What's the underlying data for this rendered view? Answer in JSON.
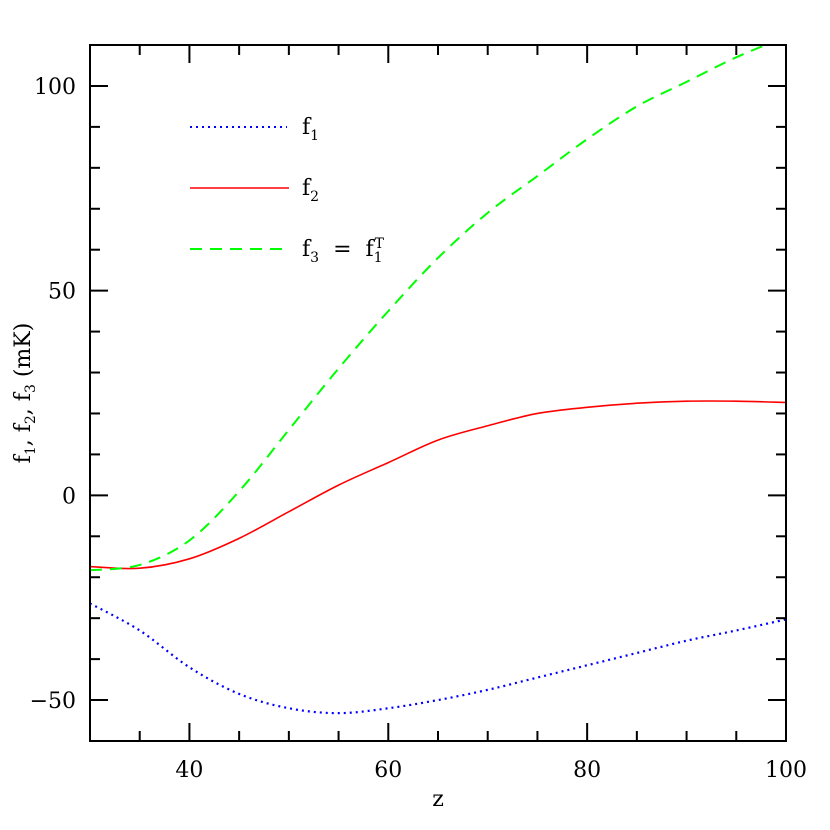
{
  "chart_data": {
    "type": "line",
    "title": "",
    "xlabel": "z",
    "ylabel": "f1, f2, f3 (mK)",
    "xlim": [
      30,
      100
    ],
    "ylim": [
      -60,
      110
    ],
    "xticks_major": [
      40,
      60,
      80,
      100
    ],
    "yticks_major": [
      -50,
      0,
      50,
      100
    ],
    "xtick_labels": [
      "40",
      "60",
      "80",
      "100"
    ],
    "ytick_labels": [
      "−50",
      "0",
      "50",
      "100"
    ],
    "grid": false,
    "legend_position": "upper left (inside)",
    "x": [
      30,
      35,
      40,
      45,
      50,
      55,
      60,
      65,
      70,
      75,
      80,
      85,
      90,
      95,
      100
    ],
    "series": [
      {
        "name": "f1",
        "legend_label": "f",
        "legend_sub": "1",
        "color": "#0000ff",
        "style": "dotted",
        "values": [
          -26.4,
          -33,
          -42,
          -48.5,
          -52,
          -53.2,
          -52,
          -50,
          -47.5,
          -44.5,
          -41.5,
          -38.5,
          -35.5,
          -33,
          -30.3
        ]
      },
      {
        "name": "f2",
        "legend_label": "f",
        "legend_sub": "2",
        "color": "#ff0000",
        "style": "solid",
        "values": [
          -17.4,
          -17.8,
          -15.5,
          -10.5,
          -4,
          2.5,
          8,
          13.5,
          17,
          20,
          21.5,
          22.5,
          23,
          23,
          22.7
        ]
      },
      {
        "name": "f3 = f1^T",
        "legend_label": "f",
        "legend_sub": "3",
        "legend_eq": "=",
        "legend_rhs": "f",
        "legend_rhs_sub": "1",
        "legend_rhs_sup": "T",
        "color": "#00ff00",
        "style": "dashed",
        "values": [
          -18.3,
          -17,
          -11,
          1,
          16,
          31,
          45,
          58,
          69,
          78,
          87,
          95,
          101,
          107,
          112
        ]
      }
    ]
  },
  "axes": {
    "x_title": "z",
    "y_title_parts": [
      "f",
      "1",
      ", f",
      "2",
      ", f",
      "3",
      " (mK)"
    ]
  }
}
